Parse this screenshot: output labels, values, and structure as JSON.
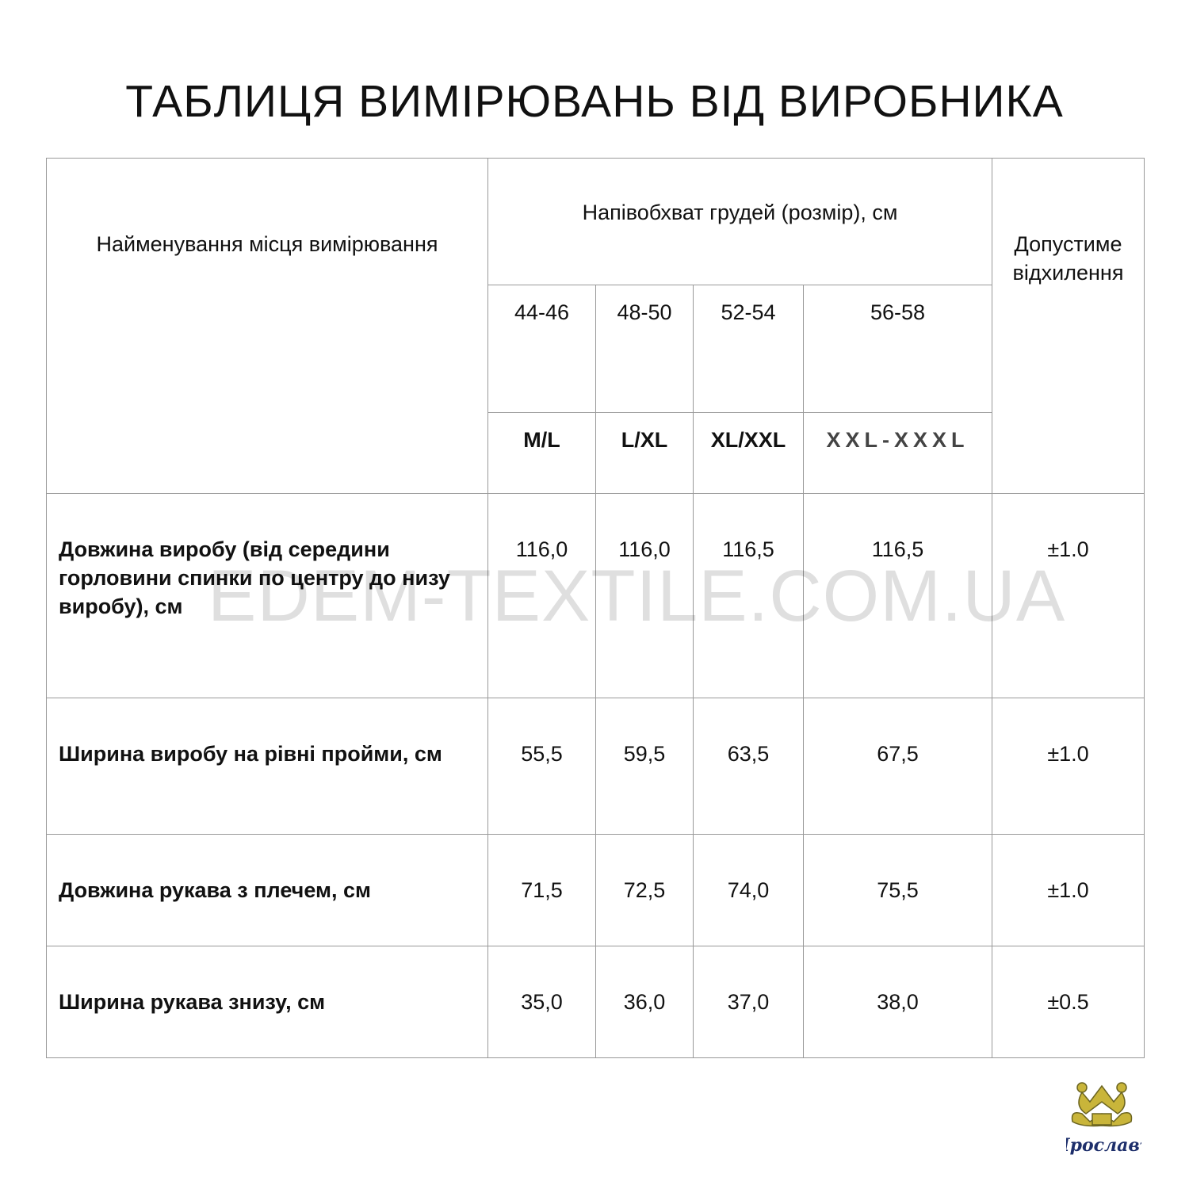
{
  "title": "ТАБЛИЦЯ ВИМІРЮВАНЬ ВІД ВИРОБНИКА",
  "header": {
    "name_col": "Найменування місця вимірювання",
    "chest_group": "Напівобхват грудей (розмір), см",
    "tolerance_col": "Допустиме відхилення",
    "sizes": [
      "44-46",
      "48-50",
      "52-54",
      "56-58"
    ],
    "letters": [
      "M/L",
      "L/XL",
      "XL/XXL",
      "XXL-XXXL"
    ]
  },
  "rows": [
    {
      "name": "Довжина виробу (від середини горловини спинки по центру до низу виробу), см",
      "values": [
        "116,0",
        "116,0",
        "116,5",
        "116,5"
      ],
      "tol": "±1.0"
    },
    {
      "name": "Ширина виробу на рівні пройми, см",
      "values": [
        "55,5",
        "59,5",
        "63,5",
        "67,5"
      ],
      "tol": "±1.0"
    },
    {
      "name": "Довжина рукава з плечем, см",
      "values": [
        "71,5",
        "72,5",
        "74,0",
        "75,5"
      ],
      "tol": "±1.0"
    },
    {
      "name": "Ширина рукава знизу, см",
      "values": [
        "35,0",
        "36,0",
        "37,0",
        "38,0"
      ],
      "tol": "±0.5"
    }
  ],
  "watermark": "EDEM-TEXTILE.COM.UA",
  "logo_text": "Ярославъ"
}
